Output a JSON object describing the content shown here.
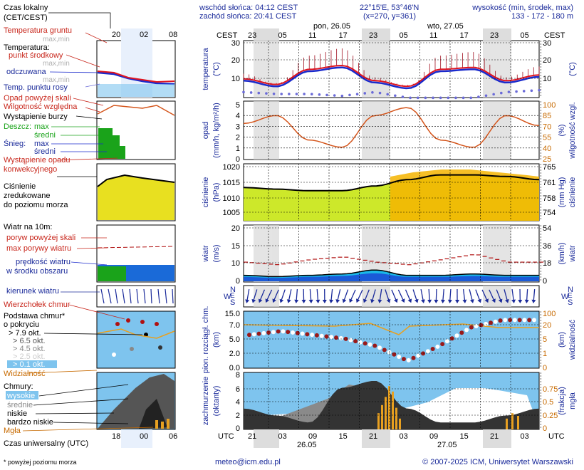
{
  "header": {
    "sunrise": "wschód słońca: 04:12 CEST",
    "sunset": "zachód słońca: 20:41 CEST",
    "coords": "22°15'E, 53°46'N",
    "grid": "(x=270, y=361)",
    "elev_title": "wysokość (min, środek, max)",
    "elev_values": "133 - 172 - 180 m"
  },
  "time": {
    "cest_label": "CEST",
    "utc_label": "UTC",
    "day1_label": "pon, 26.05",
    "day2_label": "wto, 27.05",
    "cest_ticks": [
      "23",
      "05",
      "11",
      "17",
      "23",
      "05",
      "11",
      "17",
      "23",
      "05"
    ],
    "utc_ticks": [
      "21",
      "03",
      "09",
      "15",
      "21",
      "03",
      "09",
      "15",
      "21",
      "03"
    ],
    "utc_date1": "26.05",
    "utc_date2": "27.05"
  },
  "legend": {
    "local_time": "Czas lokalny",
    "local_time_sub": "(CET/CEST)",
    "legend_top_ticks": [
      "20",
      "02",
      "08"
    ],
    "soil_temp": "Temperatura gruntu",
    "soil_temp_sub": "max,min",
    "temp": "Temperatura:",
    "temp_mid": "punkt środkowy",
    "temp_maxmin": "max,min",
    "temp_felt": "odczuwana",
    "temp_felt_sub": "max,min",
    "dew_point": "Temp. punktu rosy",
    "precip_above": "Opad powyżej skali",
    "humidity": "Wilgotność względna",
    "storm": "Wystąpienie burzy",
    "rain": "Deszcz:",
    "rain_max": "max",
    "rain_mean": "średni",
    "snow": "Śnieg:",
    "snow_max": "max",
    "snow_mean": "średni",
    "convective": "Wystąpienie opadu",
    "convective2": "konwekcyjnego",
    "pressure1": "Ciśnienie",
    "pressure2": "zredukowane",
    "pressure3": "do poziomu morza",
    "wind": "Wiatr na 10m:",
    "gust_above": "poryw powyżej skali",
    "gust_max": "max porywy wiatru",
    "wind_speed": "prędkość wiatru",
    "wind_speed2": "w środku obszaru",
    "wind_dir": "kierunek wiatru",
    "wind_chill": "Wierzchołek chmur",
    "cloud_base": "Podstawa chmur*",
    "cloud_base2": "o pokryciu",
    "cov1": "> 7.9 okt.",
    "cov2": "> 6.5 okt.",
    "cov3": "> 4.5 okt.",
    "cov4": "> 2.5 okt.",
    "cov5": "> 0.1 okt.",
    "visibility": "Widzialność",
    "clouds": "Chmury:",
    "high": "wysokie",
    "mid": "średnie",
    "low": "niskie",
    "very_low": "bardzo niskie",
    "fog": "Mgła",
    "utc_time": "Czas uniwersalny (UTC)",
    "footnote": "* powyżej poziomu morza",
    "legend_bottom_ticks": [
      "18",
      "00",
      "06"
    ]
  },
  "axes": {
    "temp_label": "temperatura",
    "temp_unit": "(°C)",
    "precip_label": "opad",
    "precip_unit": "(mm/h, kg/m²/h)",
    "hum_label": "wilgotność wzgl.",
    "hum_unit": "(%)",
    "pres_label": "ciśnienie",
    "pres_unit": "(hPa)",
    "pres_unit2": "(mm Hg)",
    "wind_label": "wiatr",
    "wind_unit": "(m/s)",
    "wind_unit2": "(km/h)",
    "cloud_label": "pion. rozciągł. chm.",
    "cloud_unit": "(km)",
    "vis_label": "widzialność",
    "vis_unit": "(km)",
    "cover_label": "zachmurzenie",
    "cover_unit": "(oktanty)",
    "fog_label": "mgła",
    "fog_unit": "(frakcja)",
    "compass": [
      "N",
      "W",
      "E",
      "S"
    ]
  },
  "footer": {
    "email": "meteo@icm.edu.pl",
    "copyright": "© 2007-2025 ICM, Uniwersytet Warszawski"
  },
  "colors": {
    "night": "#e6e6e6",
    "temp": "#e0141e",
    "felt": "#1a2acc",
    "dew": "#6a6ad8",
    "humidity": "#d4541a",
    "pressure_low": "#8ee82a",
    "pressure_high": "#f4b400",
    "wind_fill": "#1a6ad8",
    "wind_light": "#1ab8e8",
    "gust": "#b01010",
    "sky": "#7ec4ee",
    "vis": "#e8a020",
    "cloud_dark": "#404040"
  },
  "chart_data": [
    {
      "type": "line",
      "name": "temperature",
      "x": [
        "23",
        "05",
        "11",
        "17",
        "23",
        "05",
        "11",
        "17",
        "23",
        "05"
      ],
      "ylim": [
        0,
        30
      ],
      "series": [
        {
          "name": "punkt środkowy",
          "values": [
            11,
            8,
            16,
            18,
            10,
            7,
            16,
            17,
            10,
            13
          ]
        },
        {
          "name": "odczuwana",
          "values": [
            10,
            7,
            15,
            17,
            9,
            6,
            15,
            16,
            9,
            12
          ]
        },
        {
          "name": "Temp. punktu rosy",
          "values": [
            7,
            6,
            6,
            5,
            7,
            4,
            4,
            4,
            7,
            8
          ]
        }
      ]
    },
    {
      "type": "line",
      "name": "humidity",
      "x": [
        "23",
        "05",
        "11",
        "17",
        "23",
        "05",
        "11",
        "17",
        "23",
        "05"
      ],
      "ylim": [
        25,
        100
      ],
      "series": [
        {
          "name": "Wilgotność względna",
          "values": [
            73,
            84,
            50,
            40,
            84,
            95,
            50,
            40,
            84,
            70
          ]
        }
      ]
    },
    {
      "type": "area",
      "name": "pressure",
      "x": [
        "23",
        "05",
        "11",
        "17",
        "23",
        "05",
        "11",
        "17",
        "23",
        "05"
      ],
      "ylim": [
        1003,
        1021
      ],
      "values": [
        1013.5,
        1013,
        1012.5,
        1012.5,
        1014,
        1016,
        1017.5,
        1017.5,
        1017,
        1016
      ]
    },
    {
      "type": "line",
      "name": "wind",
      "x": [
        "23",
        "05",
        "11",
        "17",
        "23",
        "05",
        "11",
        "17",
        "23",
        "05"
      ],
      "ylim": [
        0,
        20
      ],
      "series": [
        {
          "name": "prędkość wiatru",
          "values": [
            2,
            1.5,
            2,
            2.5,
            4,
            2,
            2,
            2.5,
            2,
            2
          ]
        },
        {
          "name": "max porywy wiatru",
          "values": [
            7,
            6,
            8,
            9,
            7,
            6,
            8,
            10,
            7,
            7
          ]
        }
      ]
    },
    {
      "type": "scatter",
      "name": "cloud_base",
      "ylim": [
        0,
        15
      ],
      "values": [
        9,
        10,
        9,
        8,
        6,
        2,
        6,
        11,
        13,
        13
      ]
    },
    {
      "type": "area",
      "name": "cloud_cover",
      "ylim": [
        0,
        8
      ],
      "values": [
        3,
        2,
        1,
        6,
        7,
        3,
        1,
        1,
        2,
        3
      ]
    }
  ]
}
